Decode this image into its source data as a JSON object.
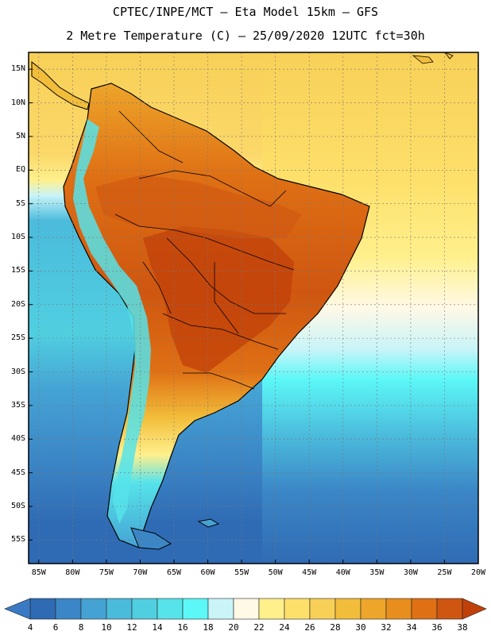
{
  "title": {
    "line1": "CPTEC/INPE/MCT –  Eta Model 15km – GFS",
    "line2": "2 Metre Temperature (C) – 25/09/2020 12UTC fct=30h"
  },
  "map": {
    "lat_labels": [
      "15N",
      "10N",
      "5N",
      "EQ",
      "5S",
      "10S",
      "15S",
      "20S",
      "25S",
      "30S",
      "35S",
      "40S",
      "45S",
      "50S",
      "55S"
    ],
    "lon_labels": [
      "85W",
      "80W",
      "75W",
      "70W",
      "65W",
      "60W",
      "55W",
      "50W",
      "45W",
      "40W",
      "35W",
      "30W",
      "25W",
      "20W"
    ],
    "lat_range": [
      17.5,
      -58.5
    ],
    "lon_range": [
      -86.5,
      -20.0
    ]
  },
  "colorbar": {
    "labels": [
      "4",
      "6",
      "8",
      "10",
      "12",
      "14",
      "16",
      "18",
      "20",
      "22",
      "24",
      "26",
      "28",
      "30",
      "32",
      "34",
      "36",
      "38"
    ],
    "low_color": "#3a7ac4",
    "high_color": "#c0400a",
    "colors": [
      "#2f6bb4",
      "#3b86c6",
      "#45a3d4",
      "#4bbbdc",
      "#50cfe0",
      "#56e3ea",
      "#5cf7f7",
      "#c9f4f8",
      "#fff9e6",
      "#fff08c",
      "#fde06a",
      "#f8d057",
      "#f2bd3a",
      "#eda52a",
      "#e88e1e",
      "#df7014",
      "#cf5610"
    ]
  }
}
